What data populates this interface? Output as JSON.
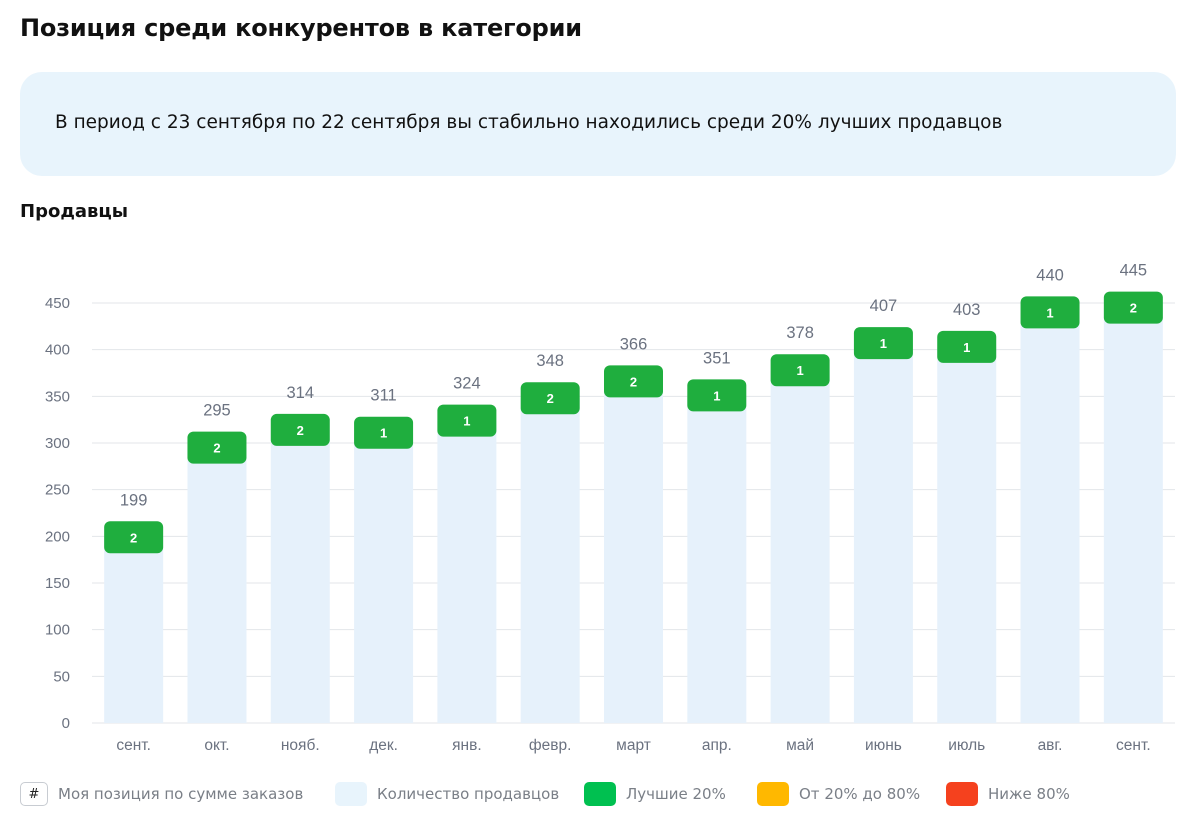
{
  "page_title": "Позиция среди конкурентов в категории",
  "info_message": "В период с 23 сентября по 22 сентября вы стабильно находились среди 20% лучших продавцов",
  "section_title": "Продавцы",
  "colors": {
    "bar_fill": "#e6f1fb",
    "badge_top": "#1fae3e",
    "legend_top": "#00c050",
    "legend_mid": "#ffb800",
    "legend_low": "#f5411e",
    "grid": "#e3e6ea",
    "axis_text": "#6b7280"
  },
  "legend": {
    "hash_symbol": "#",
    "my_position": "Моя позиция по сумме заказов",
    "seller_count": "Количество продавцов",
    "top20": "Лучшие 20%",
    "mid": "От 20% до 80%",
    "low": "Ниже 80%"
  },
  "chart_data": {
    "type": "bar",
    "categories": [
      "сент.",
      "окт.",
      "нояб.",
      "дек.",
      "янв.",
      "февр.",
      "март",
      "апр.",
      "май",
      "июнь",
      "июль",
      "авг.",
      "сент."
    ],
    "series": [
      {
        "name": "Количество продавцов",
        "values": [
          199,
          295,
          314,
          311,
          324,
          348,
          366,
          351,
          378,
          407,
          403,
          440,
          445
        ]
      },
      {
        "name": "Моя позиция по сумме заказов",
        "values": [
          2,
          2,
          2,
          1,
          1,
          2,
          2,
          1,
          1,
          1,
          1,
          1,
          2
        ]
      }
    ],
    "ylim": [
      0,
      450
    ],
    "yticks": [
      0,
      50,
      100,
      150,
      200,
      250,
      300,
      350,
      400,
      450
    ],
    "grid": true,
    "legend_position": "bottom"
  }
}
